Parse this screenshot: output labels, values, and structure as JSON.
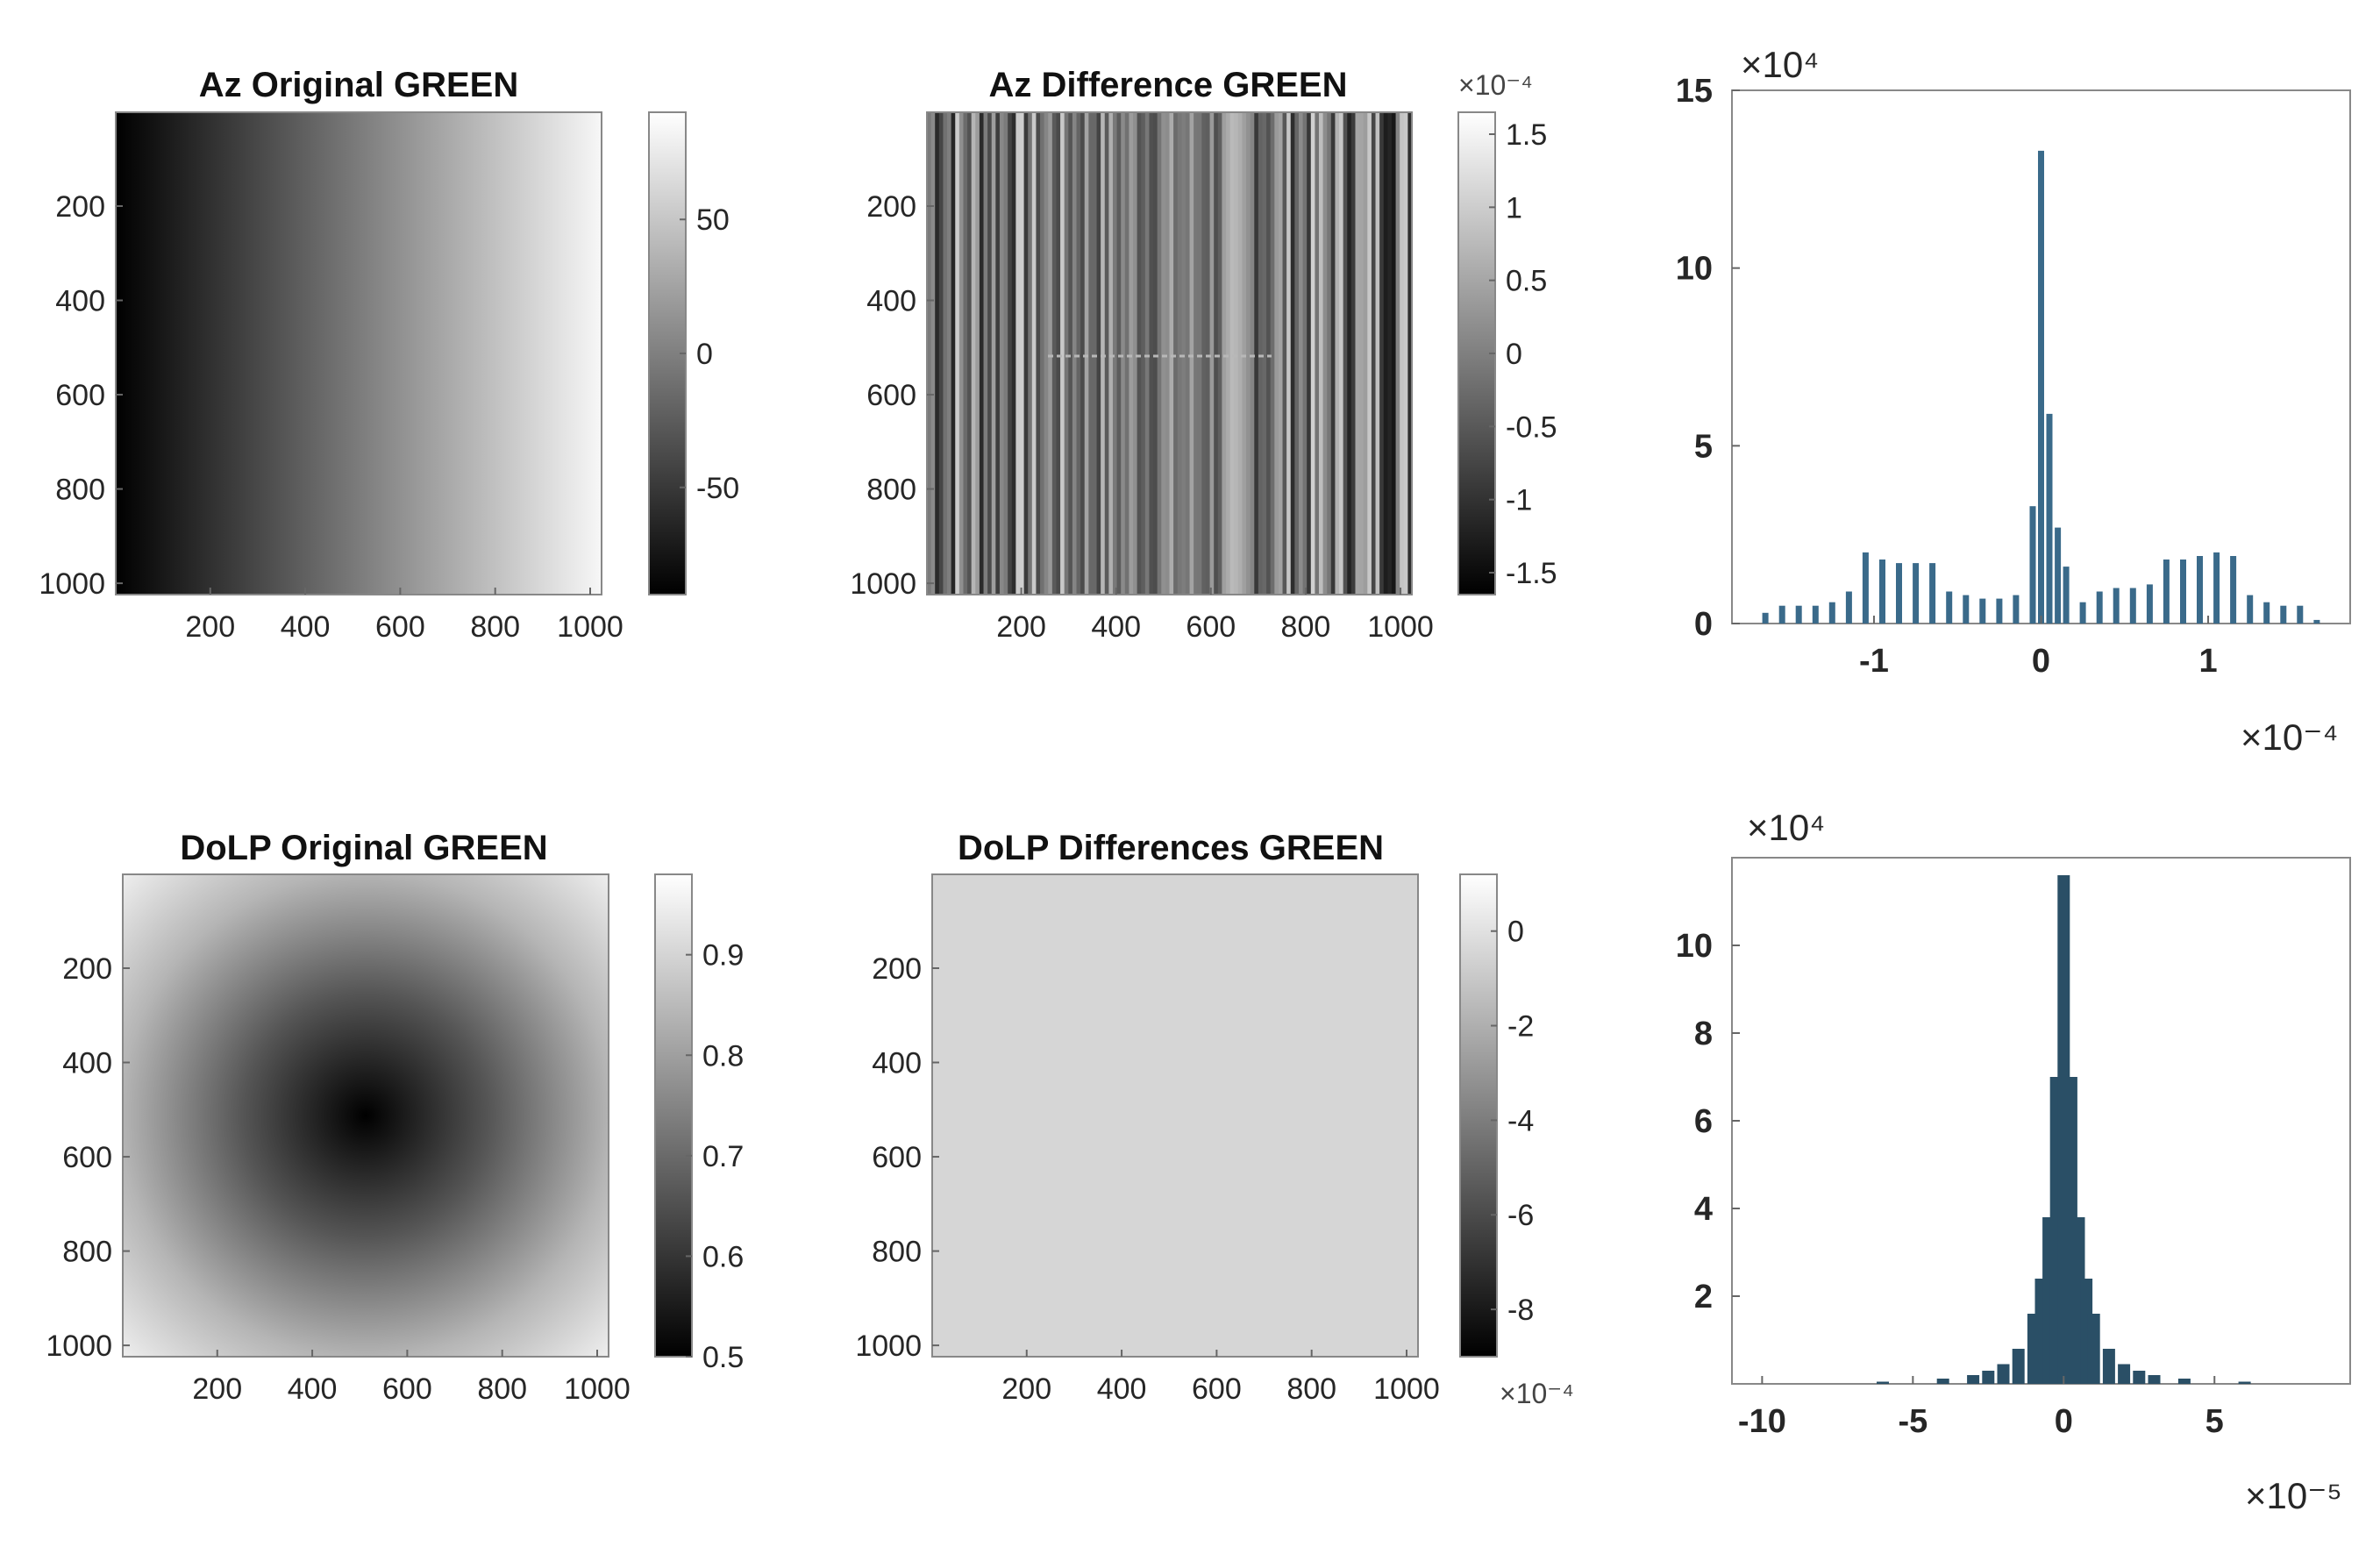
{
  "chart_data": [
    {
      "type": "heatmap",
      "title": "Az Original  GREEN",
      "pattern": "horizontal-gradient",
      "x_ticks": [
        "200",
        "400",
        "600",
        "800",
        "1000"
      ],
      "y_ticks": [
        "200",
        "400",
        "600",
        "800",
        "1000"
      ],
      "xlim": [
        1,
        1024
      ],
      "ylim": [
        1,
        1024
      ],
      "colorbar": {
        "ticks": [
          "50",
          "0",
          "-50"
        ],
        "tick_values": [
          50,
          0,
          -50
        ],
        "range": [
          -90,
          90
        ],
        "exponent": ""
      },
      "colormap": "gray"
    },
    {
      "type": "heatmap",
      "title": "Az Difference GREEN",
      "pattern": "vertical-stripes",
      "x_ticks": [
        "200",
        "400",
        "600",
        "800",
        "1000"
      ],
      "y_ticks": [
        "200",
        "400",
        "600",
        "800",
        "1000"
      ],
      "xlim": [
        1,
        1024
      ],
      "ylim": [
        1,
        1024
      ],
      "colorbar": {
        "ticks": [
          "1.5",
          "1",
          "0.5",
          "0",
          "-0.5",
          "-1",
          "-1.5"
        ],
        "tick_values": [
          1.5,
          1,
          0.5,
          0,
          -0.5,
          -1,
          -1.5
        ],
        "range": [
          -1.65,
          1.65
        ],
        "exponent": "×10⁻⁴",
        "exponent_position": "top"
      },
      "colormap": "gray"
    },
    {
      "type": "bar",
      "title": "",
      "x_ticks": [
        "-1",
        "0",
        "1"
      ],
      "x_tick_values": [
        -1,
        0,
        1
      ],
      "xlim": [
        -1.85,
        1.85
      ],
      "x_exponent": "×10⁻⁴",
      "y_ticks": [
        "0",
        "5",
        "10",
        "15"
      ],
      "y_tick_values": [
        0,
        5,
        10,
        15
      ],
      "ylim": [
        0,
        15
      ],
      "y_exponent": "×10⁴",
      "bar_color": "#3a6a8a",
      "x": [
        -1.65,
        -1.55,
        -1.45,
        -1.35,
        -1.25,
        -1.15,
        -1.05,
        -0.95,
        -0.85,
        -0.75,
        -0.65,
        -0.55,
        -0.45,
        -0.35,
        -0.25,
        -0.15,
        -0.05,
        0.0,
        0.05,
        0.1,
        0.15,
        0.25,
        0.35,
        0.45,
        0.55,
        0.65,
        0.75,
        0.85,
        0.95,
        1.05,
        1.15,
        1.25,
        1.35,
        1.45,
        1.55,
        1.65
      ],
      "values": [
        0.3,
        0.5,
        0.5,
        0.5,
        0.6,
        0.9,
        2.0,
        1.8,
        1.7,
        1.7,
        1.7,
        0.9,
        0.8,
        0.7,
        0.7,
        0.8,
        3.3,
        13.3,
        5.9,
        2.7,
        1.6,
        0.6,
        0.9,
        1.0,
        1.0,
        1.1,
        1.8,
        1.8,
        1.9,
        2.0,
        1.9,
        0.8,
        0.6,
        0.5,
        0.5,
        0.1
      ]
    },
    {
      "type": "heatmap",
      "title": "DoLP Original GREEN",
      "pattern": "radial-dark-center",
      "x_ticks": [
        "200",
        "400",
        "600",
        "800",
        "1000"
      ],
      "y_ticks": [
        "200",
        "400",
        "600",
        "800",
        "1000"
      ],
      "xlim": [
        1,
        1024
      ],
      "ylim": [
        1,
        1024
      ],
      "colorbar": {
        "ticks": [
          "0.9",
          "0.8",
          "0.7",
          "0.6",
          "0.5"
        ],
        "tick_values": [
          0.9,
          0.8,
          0.7,
          0.6,
          0.5
        ],
        "range": [
          0.5,
          0.98
        ],
        "exponent": ""
      },
      "colormap": "gray"
    },
    {
      "type": "heatmap",
      "title": "DoLP Differences GREEN",
      "pattern": "uniform",
      "x_ticks": [
        "200",
        "400",
        "600",
        "800",
        "1000"
      ],
      "y_ticks": [
        "200",
        "400",
        "600",
        "800",
        "1000"
      ],
      "xlim": [
        1,
        1024
      ],
      "ylim": [
        1,
        1024
      ],
      "colorbar": {
        "ticks": [
          "0",
          "-2",
          "-4",
          "-6",
          "-8"
        ],
        "tick_values": [
          0,
          -2,
          -4,
          -6,
          -8
        ],
        "range": [
          -9,
          1.2
        ],
        "exponent": "×10⁻⁴",
        "exponent_position": "bottom"
      },
      "colormap": "gray"
    },
    {
      "type": "bar",
      "title": "",
      "x_ticks": [
        "-10",
        "-5",
        "0",
        "5"
      ],
      "x_tick_values": [
        -10,
        -5,
        0,
        5
      ],
      "xlim": [
        -11,
        9.5
      ],
      "x_exponent": "×10⁻⁵",
      "y_ticks": [
        "2",
        "4",
        "6",
        "8",
        "10"
      ],
      "y_tick_values": [
        2,
        4,
        6,
        8,
        10
      ],
      "ylim": [
        0,
        12
      ],
      "y_exponent": "×10⁴",
      "bar_color": "#2a4f66",
      "x": [
        -6.0,
        -4.0,
        -3.0,
        -2.5,
        -2.0,
        -1.5,
        -1.0,
        -0.75,
        -0.5,
        -0.25,
        0.0,
        0.25,
        0.5,
        0.75,
        1.0,
        1.5,
        2.0,
        2.5,
        3.0,
        4.0,
        6.0
      ],
      "values": [
        0.05,
        0.12,
        0.2,
        0.3,
        0.45,
        0.8,
        1.6,
        2.4,
        3.8,
        7.0,
        11.6,
        7.0,
        3.8,
        2.4,
        1.6,
        0.8,
        0.45,
        0.3,
        0.2,
        0.12,
        0.05
      ]
    }
  ]
}
